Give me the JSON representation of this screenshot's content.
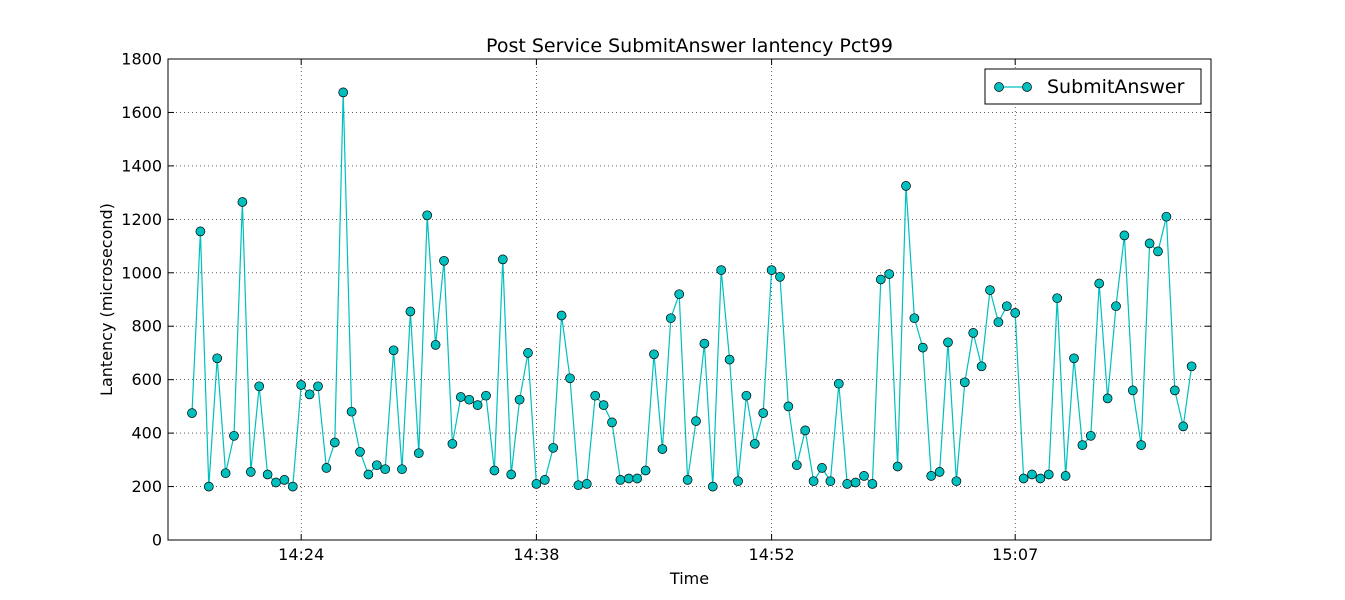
{
  "chart_data": {
    "type": "line",
    "title": "Post Service SubmitAnswer lantency Pct99",
    "xlabel": "Time",
    "ylabel": "Lantency (microsecond)",
    "ylim": [
      0,
      1800
    ],
    "y_ticks": [
      "0",
      "200",
      "400",
      "600",
      "800",
      "1000",
      "1200",
      "1400",
      "1600",
      "1800"
    ],
    "x_ticks": [
      "14:24",
      "14:38",
      "14:52",
      "15:07"
    ],
    "grid": true,
    "legend_position": "top-right",
    "series_color": "#00bfbf",
    "series": [
      {
        "name": "SubmitAnswer",
        "values": [
          475,
          1155,
          200,
          680,
          250,
          390,
          1265,
          255,
          575,
          245,
          215,
          225,
          200,
          580,
          545,
          575,
          270,
          365,
          1675,
          480,
          330,
          245,
          280,
          265,
          710,
          265,
          855,
          325,
          1215,
          730,
          1045,
          360,
          535,
          525,
          505,
          540,
          260,
          1050,
          245,
          525,
          700,
          210,
          225,
          345,
          840,
          605,
          205,
          210,
          540,
          505,
          440,
          225,
          230,
          230,
          260,
          695,
          340,
          830,
          920,
          225,
          445,
          735,
          200,
          1010,
          675,
          220,
          540,
          360,
          475,
          1010,
          985,
          500,
          280,
          410,
          220,
          270,
          220,
          585,
          210,
          215,
          240,
          210,
          975,
          995,
          275,
          1325,
          830,
          720,
          240,
          255,
          740,
          220,
          590,
          775,
          650,
          935,
          815,
          875,
          850,
          230,
          245,
          230,
          245,
          905,
          240,
          680,
          355,
          390,
          960,
          530,
          875,
          1140,
          560,
          355,
          1110,
          1080,
          1210,
          560,
          425,
          650
        ]
      }
    ]
  }
}
